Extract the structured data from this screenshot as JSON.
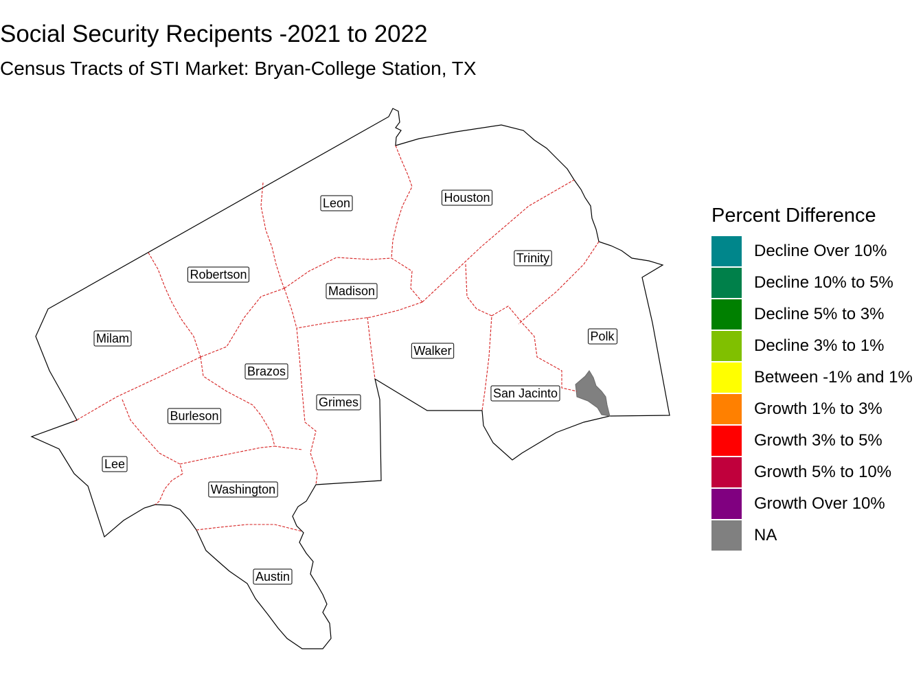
{
  "title": "Social Security Recipents -2021 to 2022",
  "subtitle": "Census Tracts of STI Market: Bryan-College Station, TX",
  "map": {
    "counties": [
      "Leon",
      "Houston",
      "Robertson",
      "Madison",
      "Trinity",
      "Milam",
      "Polk",
      "Brazos",
      "Walker",
      "San Jacinto",
      "Grimes",
      "Burleson",
      "Lee",
      "Washington",
      "Austin"
    ],
    "na_color": "#808080"
  },
  "legend": {
    "title": "Percent Difference",
    "items": [
      {
        "label": "Decline Over 10%",
        "color": "#00868b"
      },
      {
        "label": "Decline 10% to 5%",
        "color": "#00804a"
      },
      {
        "label": "Decline 5% to 3%",
        "color": "#008000"
      },
      {
        "label": "Decline 3% to 1%",
        "color": "#80c000"
      },
      {
        "label": "Between -1% and 1%",
        "color": "#ffff00"
      },
      {
        "label": "Growth 1% to 3%",
        "color": "#ff8000"
      },
      {
        "label": "Growth 3% to 5%",
        "color": "#ff0000"
      },
      {
        "label": "Growth 5% to 10%",
        "color": "#c0003c"
      },
      {
        "label": "Growth Over 10%",
        "color": "#800080"
      },
      {
        "label": "NA",
        "color": "#808080"
      }
    ]
  }
}
